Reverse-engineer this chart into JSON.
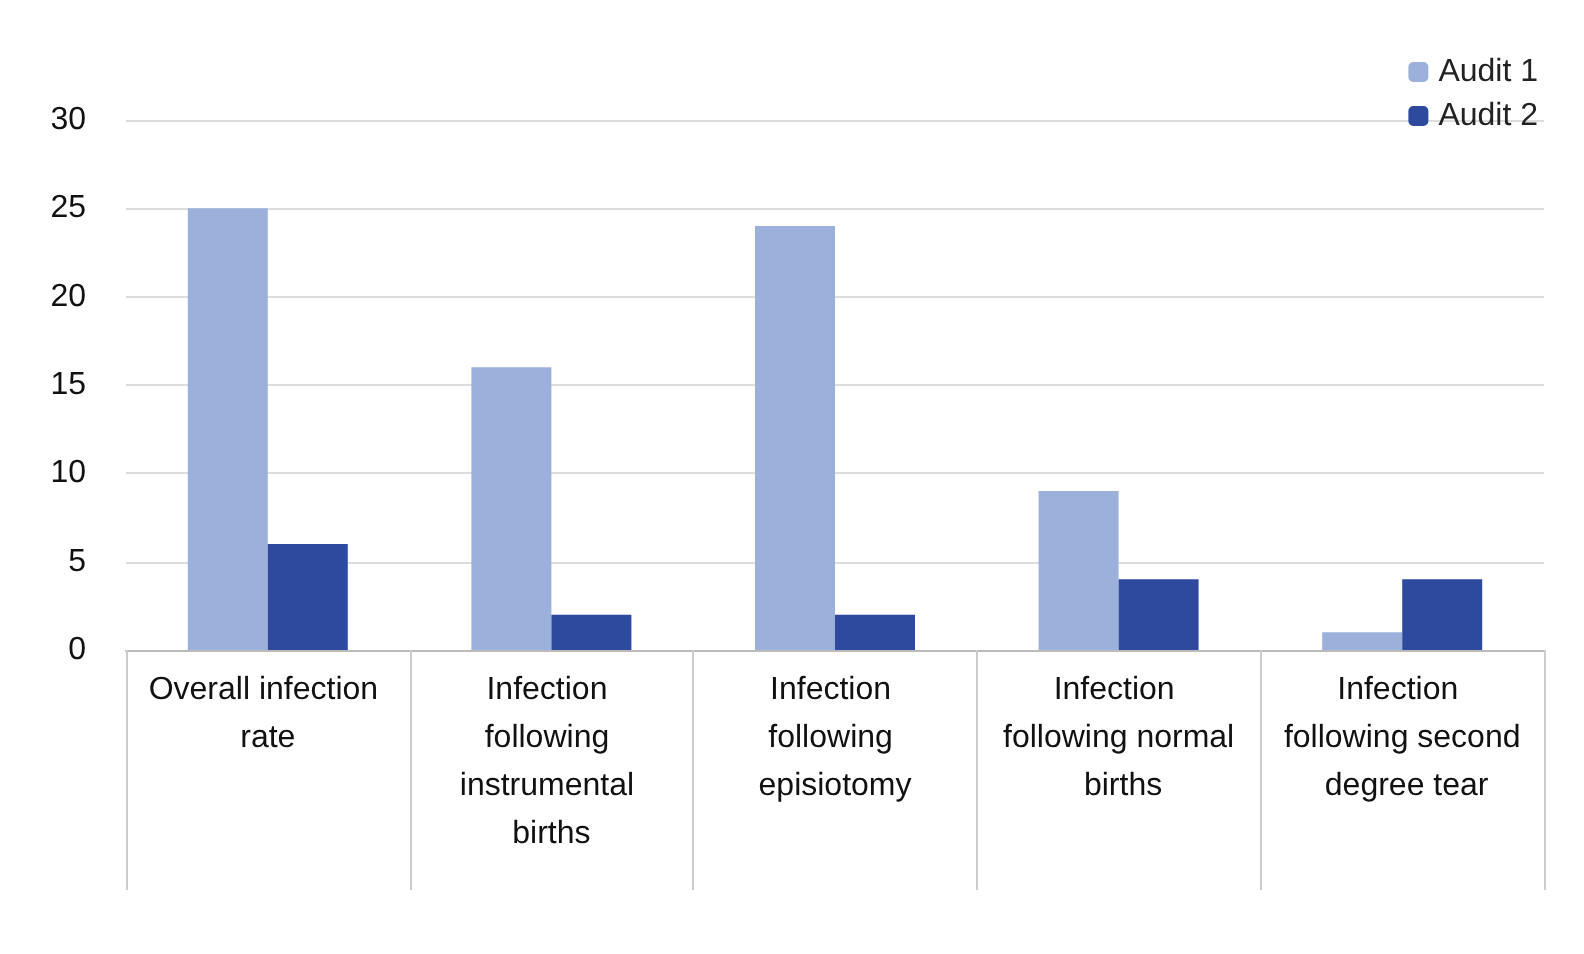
{
  "chart_data": {
    "type": "bar",
    "categories": [
      "Overall infection rate",
      "Infection following instrumental births",
      "Infection following episiotomy",
      "Infection following normal births",
      "Infection following second degree tear"
    ],
    "series": [
      {
        "name": "Audit 1",
        "color": "#9bb0da",
        "values": [
          25,
          16,
          24,
          9,
          1
        ]
      },
      {
        "name": "Audit 2",
        "color": "#2d4a9f",
        "values": [
          6,
          2,
          2,
          4,
          4
        ]
      }
    ],
    "ylim": [
      0,
      30
    ],
    "yticks": [
      0,
      5,
      10,
      15,
      20,
      25,
      30
    ],
    "grid": "y",
    "legend": "top right"
  }
}
